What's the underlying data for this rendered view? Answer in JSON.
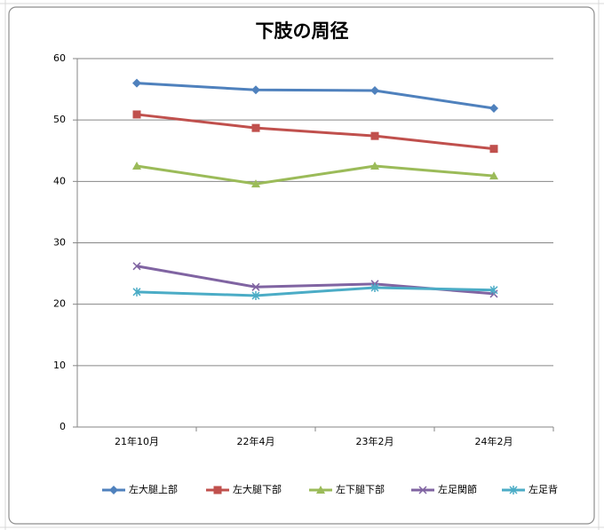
{
  "chart_data": {
    "type": "line",
    "title": "下肢の周径",
    "categories": [
      "21年10月",
      "22年4月",
      "23年2月",
      "24年2月"
    ],
    "series": [
      {
        "name": "左大腿上部",
        "color": "#4f81bd",
        "marker": "diamond",
        "values": [
          56.0,
          54.9,
          54.8,
          51.9
        ]
      },
      {
        "name": "左大腿下部",
        "color": "#c0504d",
        "marker": "square",
        "values": [
          50.9,
          48.7,
          47.4,
          45.3
        ]
      },
      {
        "name": "左下腿下部",
        "color": "#9bbb59",
        "marker": "triangle",
        "values": [
          42.5,
          39.6,
          42.5,
          40.9
        ]
      },
      {
        "name": "左足関節",
        "color": "#8064a2",
        "marker": "x",
        "values": [
          26.2,
          22.8,
          23.3,
          21.7
        ]
      },
      {
        "name": "左足背",
        "color": "#4bacc6",
        "marker": "star",
        "values": [
          22.0,
          21.4,
          22.7,
          22.3
        ]
      }
    ],
    "ylim": [
      0,
      60
    ],
    "yticks": [
      0,
      10,
      20,
      30,
      40,
      50,
      60
    ],
    "grid": true,
    "legend": "bottom"
  }
}
